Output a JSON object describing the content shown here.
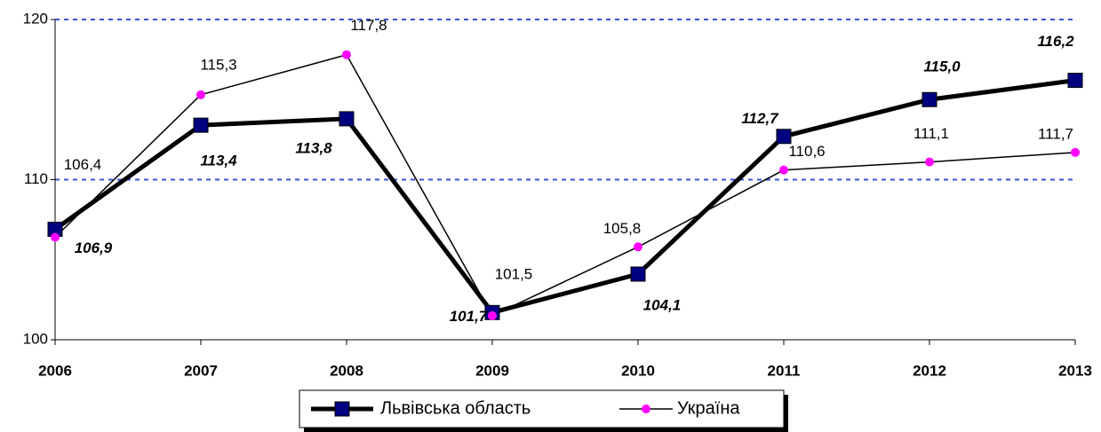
{
  "chart_data": {
    "type": "line",
    "categories": [
      "2006",
      "2007",
      "2008",
      "2009",
      "2010",
      "2011",
      "2012",
      "2013"
    ],
    "series": [
      {
        "name": "Львівська область",
        "color": "#000080",
        "values": [
          106.9,
          113.4,
          113.8,
          101.7,
          104.1,
          112.7,
          115.0,
          116.2
        ],
        "value_labels": [
          "106,9",
          "113,4",
          "113,8",
          "101,7",
          "104,1",
          "112,7",
          "115,0",
          "116,2"
        ]
      },
      {
        "name": "Україна",
        "color": "#ff00ff",
        "values": [
          106.4,
          115.3,
          117.8,
          101.5,
          105.8,
          110.6,
          111.1,
          111.7
        ],
        "value_labels": [
          "106,4",
          "115,3",
          "117,8",
          "101,5",
          "105,8",
          "110,6",
          "111,1",
          "111,7"
        ]
      }
    ],
    "ylim": [
      100,
      120
    ],
    "yticks": [
      100,
      110,
      120
    ],
    "grid": true
  }
}
